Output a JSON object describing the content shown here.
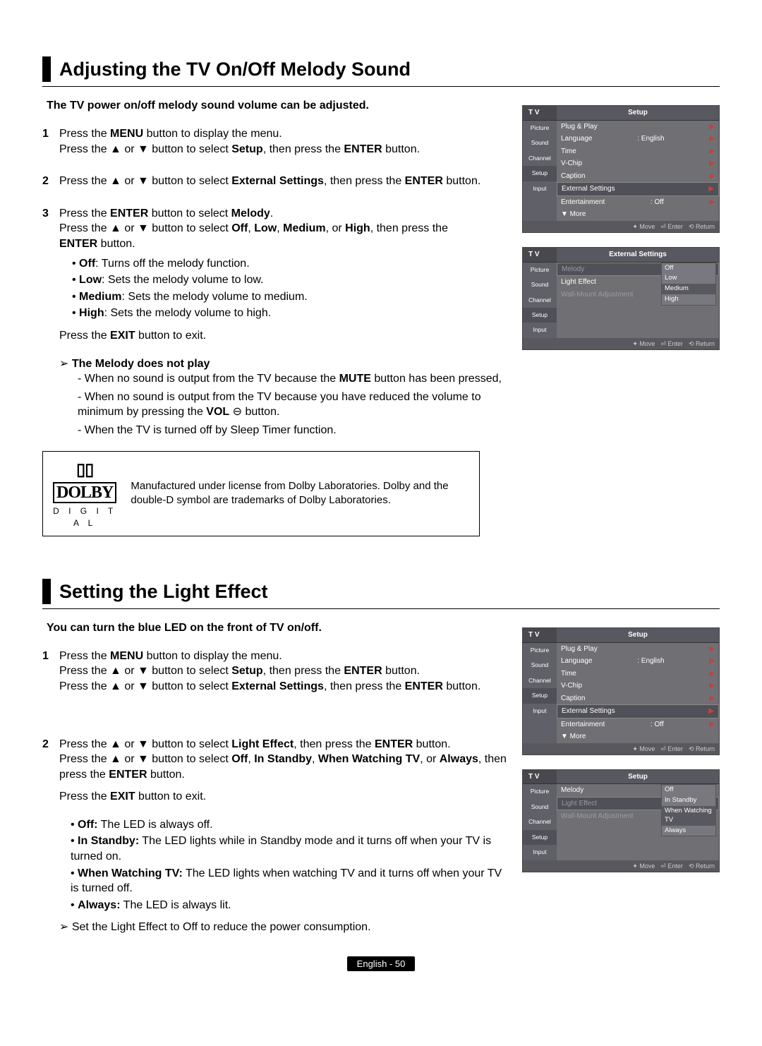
{
  "section1": {
    "title": "Adjusting the TV On/Off Melody Sound",
    "intro": "The TV power on/off melody sound volume can be adjusted.",
    "steps": {
      "s1": {
        "num": "1",
        "l1a": "Press the ",
        "l1b": "MENU",
        "l1c": " button to display the menu.",
        "l2a": "Press the ▲ or ▼ button to select ",
        "l2b": "Setup",
        "l2c": ", then press the ",
        "l2d": "ENTER",
        "l2e": " button."
      },
      "s2": {
        "num": "2",
        "l1a": "Press the ▲ or ▼ button to select ",
        "l1b": "External Settings",
        "l1c": ", then press the ",
        "l1d": "ENTER",
        "l1e": " button."
      },
      "s3": {
        "num": "3",
        "l1a": "Press the ",
        "l1b": "ENTER",
        "l1c": " button to select ",
        "l1d": "Melody",
        "l1e": ".",
        "l2a": "Press the ▲ or ▼ button to select ",
        "l2b": "Off",
        "l2c": ", ",
        "l2d": "Low",
        "l2e": ", ",
        "l2f": "Medium",
        "l2g": ", or ",
        "l2h": "High",
        "l2i": ", then press the ",
        "l3a": "ENTER",
        "l3b": " button.",
        "bullets": {
          "b1a": "Off",
          "b1b": ": Turns off the melody function.",
          "b2a": "Low",
          "b2b": ": Sets the melody volume to low.",
          "b3a": "Medium",
          "b3b": ": Sets the melody volume to medium.",
          "b4a": "High",
          "b4b": ": Sets the melody volume to high."
        }
      }
    },
    "exit_a": "Press the ",
    "exit_b": "EXIT",
    "exit_c": " button to exit.",
    "noplay": {
      "lead": "The Melody does not play",
      "d1a": "- When no sound is output from the TV because the ",
      "d1b": "MUTE",
      "d1c": " button has been pressed,",
      "d2a": "- When no sound is output from the TV because you have reduced the volume to minimum by pressing the ",
      "d2b": "VOL",
      "d2c": " ⊖ button.",
      "d3": "- When the TV is turned off by Sleep Timer function."
    },
    "dolby": {
      "logo_top": "▯▯ DOLBY",
      "logo_bottom": "D I G I T A L",
      "text": "Manufactured under license from Dolby Laboratories. Dolby and the double-D symbol are trademarks of Dolby Laboratories."
    }
  },
  "section2": {
    "title": "Setting the Light Effect",
    "intro": "You can turn the blue LED on the front of TV on/off.",
    "steps": {
      "s1": {
        "num": "1",
        "l1a": "Press the ",
        "l1b": "MENU",
        "l1c": " button to display the menu.",
        "l2a": "Press the ▲ or ▼ button to select ",
        "l2b": "Setup",
        "l2c": ", then press the ",
        "l2d": "ENTER",
        "l2e": " button.",
        "l3a": "Press the ▲ or ▼ button to select ",
        "l3b": "External Settings",
        "l3c": ", then press the ",
        "l3d": "ENTER",
        "l3e": " button."
      },
      "s2": {
        "num": "2",
        "l1a": "Press the ▲ or ▼ button to select ",
        "l1b": "Light Effect",
        "l1c": ", then press the ",
        "l1d": "ENTER",
        "l1e": " button.",
        "l2a": "Press the ▲ or ▼ button to select ",
        "l2b": "Off",
        "l2c": ", ",
        "l2d": "In Standby",
        "l2e": ", ",
        "l2f": "When Watching TV",
        "l2g": ", or ",
        "l2h": "Always",
        "l2i": ", then press the ",
        "l2j": "ENTER",
        "l2k": " button."
      }
    },
    "exit_a": "Press the ",
    "exit_b": "EXIT",
    "exit_c": " button to exit.",
    "bullets": {
      "b1a": "Off:",
      "b1b": " The LED is always off.",
      "b2a": "In Standby:",
      "b2b": " The LED lights while in Standby mode and it turns off when your TV is turned on.",
      "b3a": "When Watching TV:",
      "b3b": " The LED lights when watching TV and it turns off when your TV is turned off.",
      "b4a": "Always:",
      "b4b": " The LED is always lit."
    },
    "note": "Set the Light Effect to Off to reduce the power consumption."
  },
  "tvmenus": {
    "tv": "T V",
    "sidebar": [
      "Picture",
      "Sound",
      "Channel",
      "Setup",
      "Input"
    ],
    "footer": {
      "move": "✦ Move",
      "enter": "⏎ Enter",
      "return": "⟲ Return"
    },
    "setup1": {
      "title": "Setup",
      "rows": [
        {
          "label": "Plug & Play",
          "val": "",
          "hl": false
        },
        {
          "label": "Language",
          "val": ": English",
          "hl": false
        },
        {
          "label": "Time",
          "val": "",
          "hl": false
        },
        {
          "label": "V-Chip",
          "val": "",
          "hl": false
        },
        {
          "label": "Caption",
          "val": "",
          "hl": false
        },
        {
          "label": "External Settings",
          "val": "",
          "hl": true
        },
        {
          "label": "Entertainment",
          "val": ": Off",
          "hl": false
        },
        {
          "label": "▼ More",
          "val": "",
          "hl": false,
          "noarrow": true
        }
      ]
    },
    "ext1": {
      "title": "External Settings",
      "rows": [
        {
          "label": "Melody",
          "val": "",
          "hl": true,
          "dim": true
        },
        {
          "label": "Light Effect",
          "val": "",
          "hl": false
        },
        {
          "label": "Wall-Mount Adjustment",
          "val": "",
          "hl": false,
          "dim": true
        }
      ],
      "popup": [
        "Off",
        "Low",
        "Medium",
        "High"
      ],
      "popup_sel": "Medium"
    },
    "ext2": {
      "title": "Setup",
      "rows": [
        {
          "label": "Melody",
          "val": "",
          "hl": false
        },
        {
          "label": "Light Effect",
          "val": "",
          "hl": true,
          "dim": true
        },
        {
          "label": "Wall-Mount Adjustment",
          "val": "",
          "hl": false,
          "dim": true
        }
      ],
      "popup": [
        "Off",
        "In Standby",
        "When Watching TV",
        "Always"
      ],
      "popup_sel": "When Watching TV"
    }
  },
  "footer": "English - 50"
}
